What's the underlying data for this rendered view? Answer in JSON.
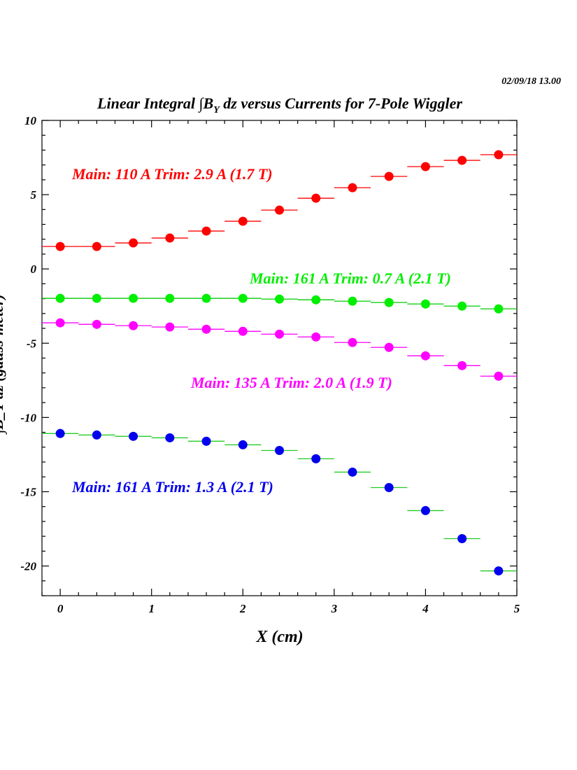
{
  "timestamp": "02/09/18   13.00",
  "chart_data": {
    "type": "scatter",
    "title": "Linear Integral ∫B_Y dz  versus Currents for 7-Pole Wiggler",
    "title_parts": {
      "pre": "Linear Integral ",
      "integral": "∫",
      "b": "B",
      "sub": "Y",
      "dz": " dz",
      "post": "  versus Currents for 7-Pole Wiggler"
    },
    "xlabel": "X (cm)",
    "ylabel": "∫B_Y dz (gauss-meter)",
    "xlim": [
      -0.2,
      5
    ],
    "ylim": [
      -22,
      10
    ],
    "xticks": [
      0,
      1,
      2,
      3,
      4,
      5
    ],
    "yticks": [
      10,
      5,
      0,
      -5,
      -10,
      -15,
      -20
    ],
    "grid": false,
    "x_error": 0.2,
    "x": [
      0,
      0.4,
      0.8,
      1.2,
      1.6,
      2.0,
      2.4,
      2.8,
      3.2,
      3.6,
      4.0,
      4.4,
      4.8
    ],
    "series": [
      {
        "name": "Main: 110 A  Trim: 2.9 A  (1.7 T)",
        "color": "#ff0000",
        "errcolor": "#ff0000",
        "values": [
          1.51,
          1.51,
          1.75,
          2.08,
          2.55,
          3.21,
          3.96,
          4.76,
          5.47,
          6.23,
          6.89,
          7.31,
          7.69
        ]
      },
      {
        "name": "Main: 161 A  Trim: 0.7 A  (2.1 T)",
        "color": "#00ee00",
        "errcolor": "#00cc00",
        "values": [
          -1.98,
          -1.98,
          -1.98,
          -1.98,
          -1.98,
          -1.98,
          -2.03,
          -2.08,
          -2.17,
          -2.26,
          -2.36,
          -2.5,
          -2.69
        ]
      },
      {
        "name": "Main: 135 A  Trim: 2.0 A  (1.9 T)",
        "color": "#ff00ff",
        "errcolor": "#ff00ff",
        "values": [
          -3.63,
          -3.73,
          -3.82,
          -3.91,
          -4.06,
          -4.2,
          -4.39,
          -4.58,
          -4.95,
          -5.28,
          -5.85,
          -6.51,
          -7.22
        ]
      },
      {
        "name": "Main: 161 A  Trim: 1.3 A  (2.1 T)",
        "color": "#0000ee",
        "errcolor": "#22cc22",
        "values": [
          -11.08,
          -11.18,
          -11.27,
          -11.37,
          -11.6,
          -11.84,
          -12.22,
          -12.78,
          -13.68,
          -14.72,
          -16.27,
          -18.16,
          -20.33
        ]
      }
    ]
  }
}
